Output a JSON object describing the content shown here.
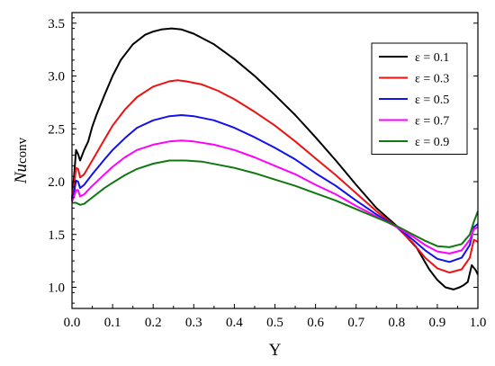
{
  "chart_data": {
    "type": "line",
    "title": "",
    "xlabel": "Y",
    "ylabel_italic": "Nu",
    "ylabel_sub": "conv",
    "xlim": [
      0.0,
      1.0
    ],
    "ylim": [
      0.8,
      3.6
    ],
    "xticks": [
      "0.0",
      "0.1",
      "0.2",
      "0.3",
      "0.4",
      "0.5",
      "0.6",
      "0.7",
      "0.8",
      "0.9",
      "1.0"
    ],
    "yticks": [
      "1.0",
      "1.5",
      "2.0",
      "2.5",
      "3.0",
      "3.5"
    ],
    "grid": false,
    "legend_position": "top-right",
    "series": [
      {
        "name": "ε = 0.1",
        "color": "#000000",
        "points": [
          [
            0.0,
            1.84
          ],
          [
            0.005,
            2.05
          ],
          [
            0.01,
            2.3
          ],
          [
            0.015,
            2.26
          ],
          [
            0.02,
            2.2
          ],
          [
            0.03,
            2.3
          ],
          [
            0.04,
            2.38
          ],
          [
            0.05,
            2.52
          ],
          [
            0.06,
            2.63
          ],
          [
            0.08,
            2.82
          ],
          [
            0.1,
            3.0
          ],
          [
            0.12,
            3.15
          ],
          [
            0.15,
            3.3
          ],
          [
            0.18,
            3.39
          ],
          [
            0.2,
            3.42
          ],
          [
            0.22,
            3.44
          ],
          [
            0.245,
            3.45
          ],
          [
            0.27,
            3.44
          ],
          [
            0.3,
            3.4
          ],
          [
            0.35,
            3.3
          ],
          [
            0.4,
            3.16
          ],
          [
            0.45,
            3.0
          ],
          [
            0.5,
            2.82
          ],
          [
            0.55,
            2.63
          ],
          [
            0.6,
            2.42
          ],
          [
            0.65,
            2.2
          ],
          [
            0.7,
            1.97
          ],
          [
            0.75,
            1.75
          ],
          [
            0.8,
            1.58
          ],
          [
            0.85,
            1.37
          ],
          [
            0.88,
            1.17
          ],
          [
            0.9,
            1.07
          ],
          [
            0.92,
            1.0
          ],
          [
            0.94,
            0.98
          ],
          [
            0.955,
            1.0
          ],
          [
            0.965,
            1.02
          ],
          [
            0.975,
            1.05
          ],
          [
            0.985,
            1.21
          ],
          [
            0.995,
            1.16
          ],
          [
            1.0,
            1.12
          ]
        ]
      },
      {
        "name": "ε = 0.3",
        "color": "#ee1111",
        "points": [
          [
            0.0,
            1.82
          ],
          [
            0.005,
            1.97
          ],
          [
            0.01,
            2.13
          ],
          [
            0.015,
            2.12
          ],
          [
            0.02,
            2.04
          ],
          [
            0.03,
            2.07
          ],
          [
            0.05,
            2.2
          ],
          [
            0.08,
            2.4
          ],
          [
            0.1,
            2.53
          ],
          [
            0.13,
            2.68
          ],
          [
            0.16,
            2.8
          ],
          [
            0.2,
            2.9
          ],
          [
            0.24,
            2.95
          ],
          [
            0.26,
            2.96
          ],
          [
            0.28,
            2.95
          ],
          [
            0.32,
            2.92
          ],
          [
            0.36,
            2.86
          ],
          [
            0.4,
            2.78
          ],
          [
            0.45,
            2.66
          ],
          [
            0.5,
            2.53
          ],
          [
            0.55,
            2.38
          ],
          [
            0.6,
            2.22
          ],
          [
            0.65,
            2.06
          ],
          [
            0.7,
            1.89
          ],
          [
            0.75,
            1.72
          ],
          [
            0.8,
            1.57
          ],
          [
            0.84,
            1.42
          ],
          [
            0.87,
            1.28
          ],
          [
            0.9,
            1.18
          ],
          [
            0.93,
            1.14
          ],
          [
            0.96,
            1.17
          ],
          [
            0.98,
            1.28
          ],
          [
            0.99,
            1.45
          ],
          [
            1.0,
            1.43
          ]
        ]
      },
      {
        "name": "ε = 0.5",
        "color": "#1111ee",
        "points": [
          [
            0.0,
            1.82
          ],
          [
            0.005,
            1.9
          ],
          [
            0.01,
            2.01
          ],
          [
            0.015,
            2.0
          ],
          [
            0.02,
            1.94
          ],
          [
            0.03,
            1.97
          ],
          [
            0.05,
            2.07
          ],
          [
            0.08,
            2.21
          ],
          [
            0.1,
            2.3
          ],
          [
            0.13,
            2.41
          ],
          [
            0.16,
            2.51
          ],
          [
            0.2,
            2.58
          ],
          [
            0.24,
            2.62
          ],
          [
            0.27,
            2.63
          ],
          [
            0.3,
            2.62
          ],
          [
            0.35,
            2.58
          ],
          [
            0.4,
            2.51
          ],
          [
            0.45,
            2.42
          ],
          [
            0.5,
            2.32
          ],
          [
            0.55,
            2.21
          ],
          [
            0.6,
            2.08
          ],
          [
            0.65,
            1.96
          ],
          [
            0.7,
            1.82
          ],
          [
            0.75,
            1.69
          ],
          [
            0.8,
            1.57
          ],
          [
            0.84,
            1.45
          ],
          [
            0.87,
            1.35
          ],
          [
            0.9,
            1.27
          ],
          [
            0.93,
            1.24
          ],
          [
            0.96,
            1.28
          ],
          [
            0.98,
            1.4
          ],
          [
            0.99,
            1.57
          ],
          [
            1.0,
            1.6
          ]
        ]
      },
      {
        "name": "ε = 0.7",
        "color": "#ff00ff",
        "points": [
          [
            0.0,
            1.81
          ],
          [
            0.005,
            1.86
          ],
          [
            0.01,
            1.92
          ],
          [
            0.015,
            1.92
          ],
          [
            0.02,
            1.86
          ],
          [
            0.03,
            1.88
          ],
          [
            0.05,
            1.96
          ],
          [
            0.08,
            2.07
          ],
          [
            0.1,
            2.14
          ],
          [
            0.13,
            2.23
          ],
          [
            0.16,
            2.3
          ],
          [
            0.2,
            2.35
          ],
          [
            0.24,
            2.38
          ],
          [
            0.27,
            2.39
          ],
          [
            0.3,
            2.38
          ],
          [
            0.35,
            2.35
          ],
          [
            0.4,
            2.3
          ],
          [
            0.45,
            2.23
          ],
          [
            0.5,
            2.15
          ],
          [
            0.55,
            2.07
          ],
          [
            0.6,
            1.97
          ],
          [
            0.65,
            1.88
          ],
          [
            0.7,
            1.77
          ],
          [
            0.75,
            1.67
          ],
          [
            0.8,
            1.57
          ],
          [
            0.84,
            1.48
          ],
          [
            0.87,
            1.4
          ],
          [
            0.9,
            1.34
          ],
          [
            0.93,
            1.32
          ],
          [
            0.96,
            1.35
          ],
          [
            0.98,
            1.45
          ],
          [
            0.99,
            1.55
          ],
          [
            1.0,
            1.57
          ]
        ]
      },
      {
        "name": "ε = 0.9",
        "color": "#117711",
        "points": [
          [
            0.0,
            1.8
          ],
          [
            0.005,
            1.8
          ],
          [
            0.01,
            1.8
          ],
          [
            0.02,
            1.78
          ],
          [
            0.03,
            1.79
          ],
          [
            0.05,
            1.85
          ],
          [
            0.08,
            1.94
          ],
          [
            0.1,
            1.99
          ],
          [
            0.13,
            2.06
          ],
          [
            0.16,
            2.12
          ],
          [
            0.2,
            2.17
          ],
          [
            0.24,
            2.2
          ],
          [
            0.28,
            2.2
          ],
          [
            0.32,
            2.19
          ],
          [
            0.36,
            2.16
          ],
          [
            0.4,
            2.13
          ],
          [
            0.45,
            2.08
          ],
          [
            0.5,
            2.02
          ],
          [
            0.55,
            1.96
          ],
          [
            0.6,
            1.89
          ],
          [
            0.65,
            1.82
          ],
          [
            0.7,
            1.74
          ],
          [
            0.75,
            1.66
          ],
          [
            0.8,
            1.58
          ],
          [
            0.84,
            1.5
          ],
          [
            0.87,
            1.44
          ],
          [
            0.9,
            1.39
          ],
          [
            0.93,
            1.38
          ],
          [
            0.96,
            1.41
          ],
          [
            0.98,
            1.5
          ],
          [
            0.99,
            1.62
          ],
          [
            1.0,
            1.72
          ]
        ]
      }
    ]
  }
}
